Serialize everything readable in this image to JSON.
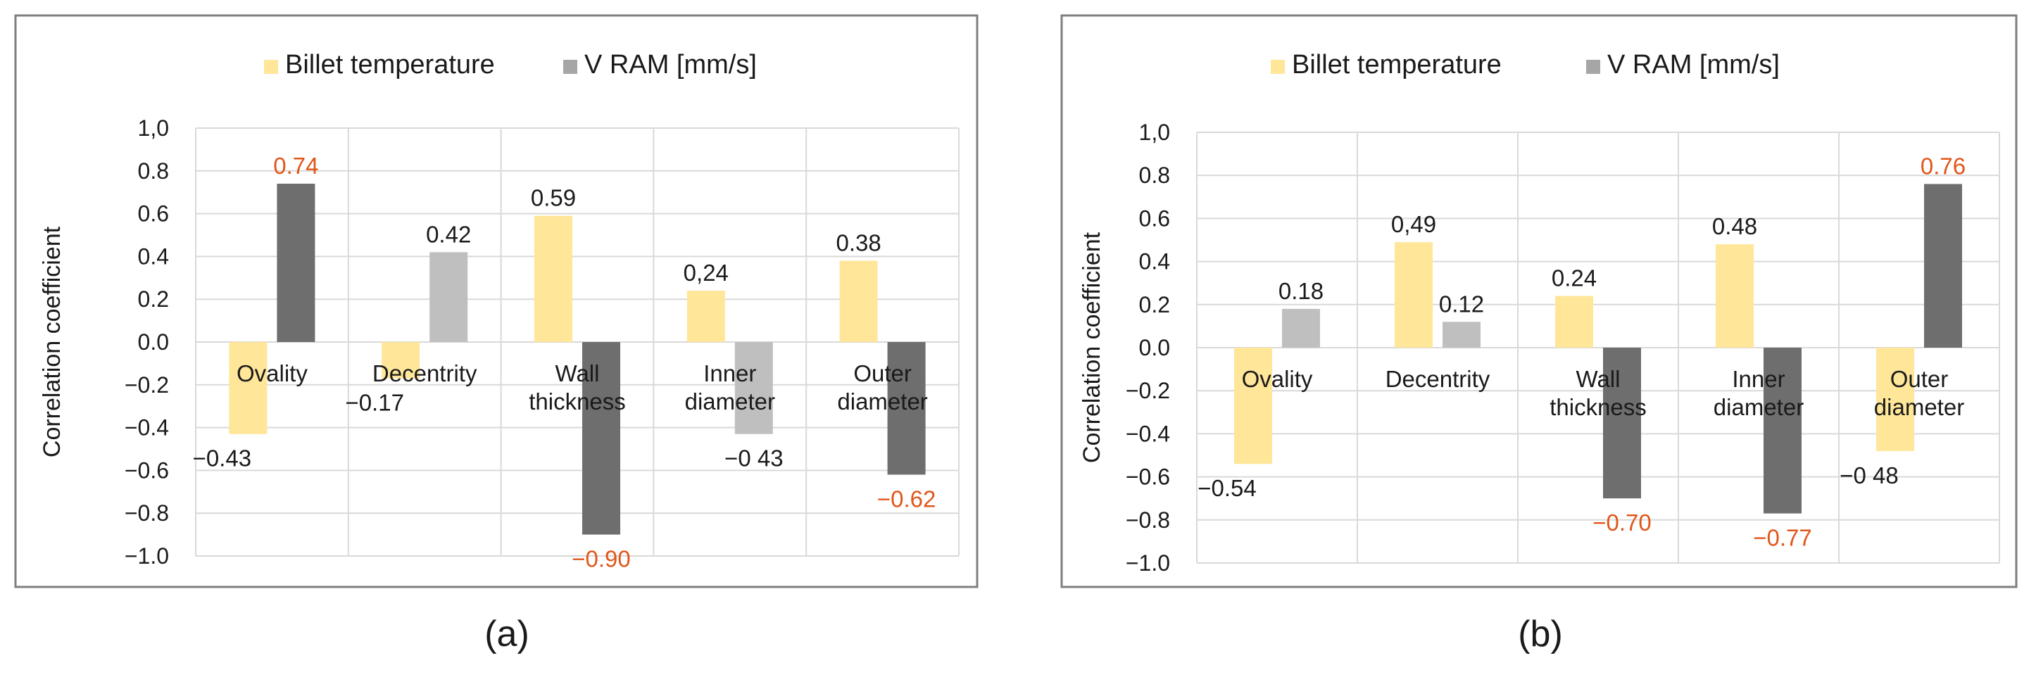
{
  "colors": {
    "billet": "#FFE699",
    "vram_dark": "#6E6E6E",
    "vram_light": "#BFBFBF",
    "highlight_label": "#E0561A",
    "normal_label": "#1a1a1a",
    "grid": "#D9D9D9",
    "frame": "#7F7F7F"
  },
  "chart_data": [
    {
      "type": "bar",
      "panel_label": "(a)",
      "ylabel": "Correlation coefficient",
      "ylim": [
        -1.0,
        1.0
      ],
      "yticks": [
        "1,0",
        "0.8",
        "0.6",
        "0.4",
        "0.2",
        "0.0",
        "−0.2",
        "−0.4",
        "−0.6",
        "−0.8",
        "−1.0"
      ],
      "ytick_values": [
        1.0,
        0.8,
        0.6,
        0.4,
        0.2,
        0.0,
        -0.2,
        -0.4,
        -0.6,
        -0.8,
        -1.0
      ],
      "categories": [
        [
          "Ovality"
        ],
        [
          "Decentrity"
        ],
        [
          "Wall",
          "thickness"
        ],
        [
          "Inner",
          "diameter"
        ],
        [
          "Outer",
          "diameter"
        ]
      ],
      "series": [
        {
          "name": "Billet temperature",
          "values": [
            -0.43,
            -0.17,
            0.59,
            0.24,
            0.38
          ],
          "labels": [
            "−0.43",
            "−0.17",
            "0.59",
            "0,24",
            "0.38"
          ],
          "highlight": [
            false,
            false,
            false,
            false,
            false
          ],
          "shade": [
            "billet",
            "billet",
            "billet",
            "billet",
            "billet"
          ]
        },
        {
          "name": "V RAM [mm/s]",
          "values": [
            0.74,
            0.42,
            -0.9,
            -0.43,
            -0.62
          ],
          "labels": [
            "0.74",
            "0.42",
            "−0.90",
            "−0 43",
            "−0.62"
          ],
          "highlight": [
            true,
            false,
            true,
            false,
            true
          ],
          "shade": [
            "dark",
            "light",
            "dark",
            "light",
            "dark"
          ]
        }
      ]
    },
    {
      "type": "bar",
      "panel_label": "(b)",
      "ylabel": "Correlation coefficient",
      "ylim": [
        -1.0,
        1.0
      ],
      "yticks": [
        "1,0",
        "0.8",
        "0.6",
        "0.4",
        "0.2",
        "0.0",
        "−0.2",
        "−0.4",
        "−0.6",
        "−0.8",
        "−1.0"
      ],
      "ytick_values": [
        1.0,
        0.8,
        0.6,
        0.4,
        0.2,
        0.0,
        -0.2,
        -0.4,
        -0.6,
        -0.8,
        -1.0
      ],
      "categories": [
        [
          "Ovality"
        ],
        [
          "Decentrity"
        ],
        [
          "Wall",
          "thickness"
        ],
        [
          "Inner",
          "diameter"
        ],
        [
          "Outer",
          "diameter"
        ]
      ],
      "series": [
        {
          "name": "Billet temperature",
          "values": [
            -0.54,
            0.49,
            0.24,
            0.48,
            -0.48
          ],
          "labels": [
            "−0.54",
            "0,49",
            "0.24",
            "0.48",
            "−0 48"
          ],
          "highlight": [
            false,
            false,
            false,
            false,
            false
          ],
          "shade": [
            "billet",
            "billet",
            "billet",
            "billet",
            "billet"
          ]
        },
        {
          "name": "V RAM [mm/s]",
          "values": [
            0.18,
            0.12,
            -0.7,
            -0.77,
            0.76
          ],
          "labels": [
            "0.18",
            "0.12",
            "−0.70",
            "−0.77",
            "0.76"
          ],
          "highlight": [
            false,
            false,
            true,
            true,
            true
          ],
          "shade": [
            "light",
            "light",
            "dark",
            "dark",
            "dark"
          ]
        }
      ]
    }
  ]
}
